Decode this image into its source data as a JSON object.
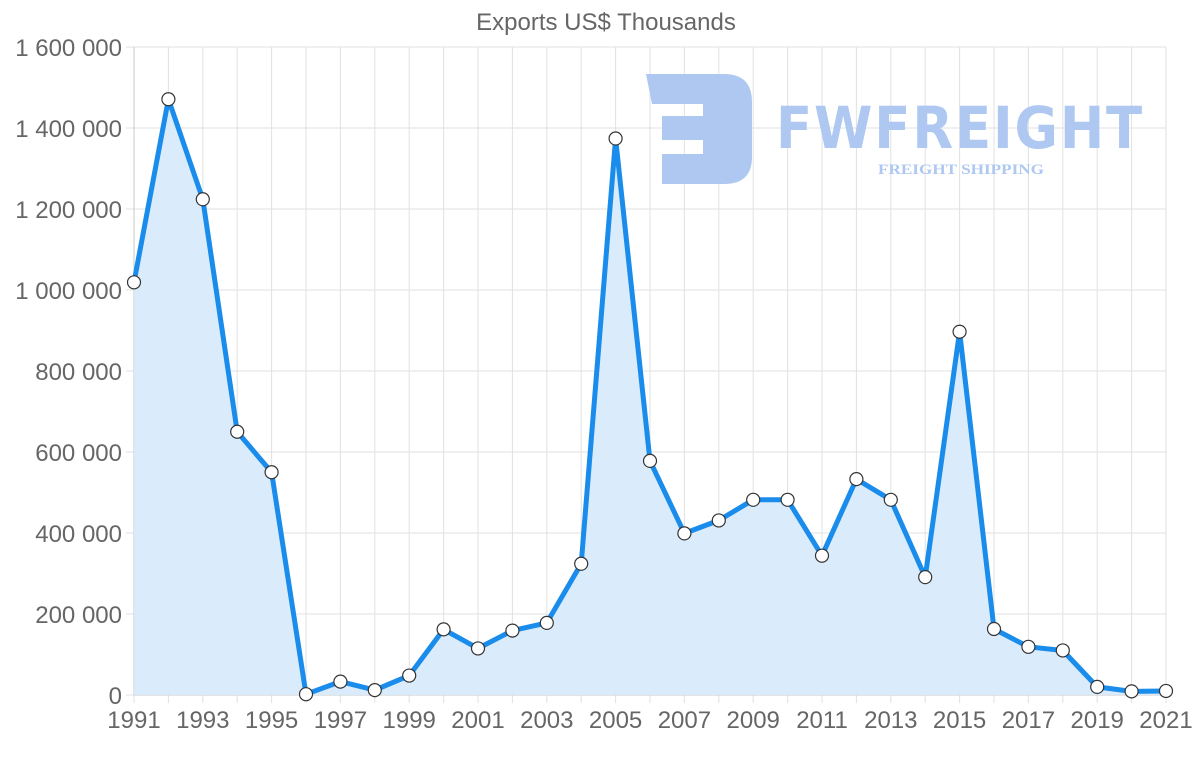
{
  "chart_data": {
    "type": "area",
    "title": "Exports US$ Thousands",
    "xlabel": "",
    "ylabel": "",
    "x": [
      1991,
      1992,
      1993,
      1994,
      1995,
      1996,
      1997,
      1998,
      1999,
      2000,
      2001,
      2002,
      2003,
      2004,
      2005,
      2006,
      2007,
      2008,
      2009,
      2010,
      2011,
      2012,
      2013,
      2014,
      2015,
      2016,
      2017,
      2018,
      2019,
      2020,
      2021
    ],
    "series": [
      {
        "name": "Exports US$ Thousands",
        "values": [
          1019000,
          1471000,
          1224000,
          650000,
          550000,
          2000,
          33000,
          12000,
          48000,
          162000,
          115000,
          159000,
          178000,
          324000,
          1374000,
          578000,
          399000,
          431000,
          482000,
          482000,
          344000,
          533000,
          482000,
          291000,
          897000,
          163000,
          119000,
          110000,
          20000,
          9000,
          10000
        ]
      }
    ],
    "ylim": [
      0,
      1600000
    ],
    "yticks": [
      0,
      200000,
      400000,
      600000,
      800000,
      1000000,
      1200000,
      1400000,
      1600000
    ],
    "ytick_labels": [
      "0",
      "200 000",
      "400 000",
      "600 000",
      "800 000",
      "1 000 000",
      "1 200 000",
      "1 400 000",
      "1 600 000"
    ],
    "xtick_labels": [
      "1991",
      "1993",
      "1995",
      "1997",
      "1999",
      "2001",
      "2003",
      "2005",
      "2007",
      "2009",
      "2011",
      "2013",
      "2015",
      "2017",
      "2019",
      "2021"
    ],
    "grid": true,
    "legend": "none",
    "colors": {
      "line": "#1a8ceb",
      "fill": "#d8ebfb",
      "point_fill": "#ffffff",
      "point_stroke": "#333333"
    }
  },
  "watermark": {
    "brand": "FWFREIGHT",
    "tagline": "FREIGHT SHIPPING",
    "color": "#aec8f2"
  }
}
